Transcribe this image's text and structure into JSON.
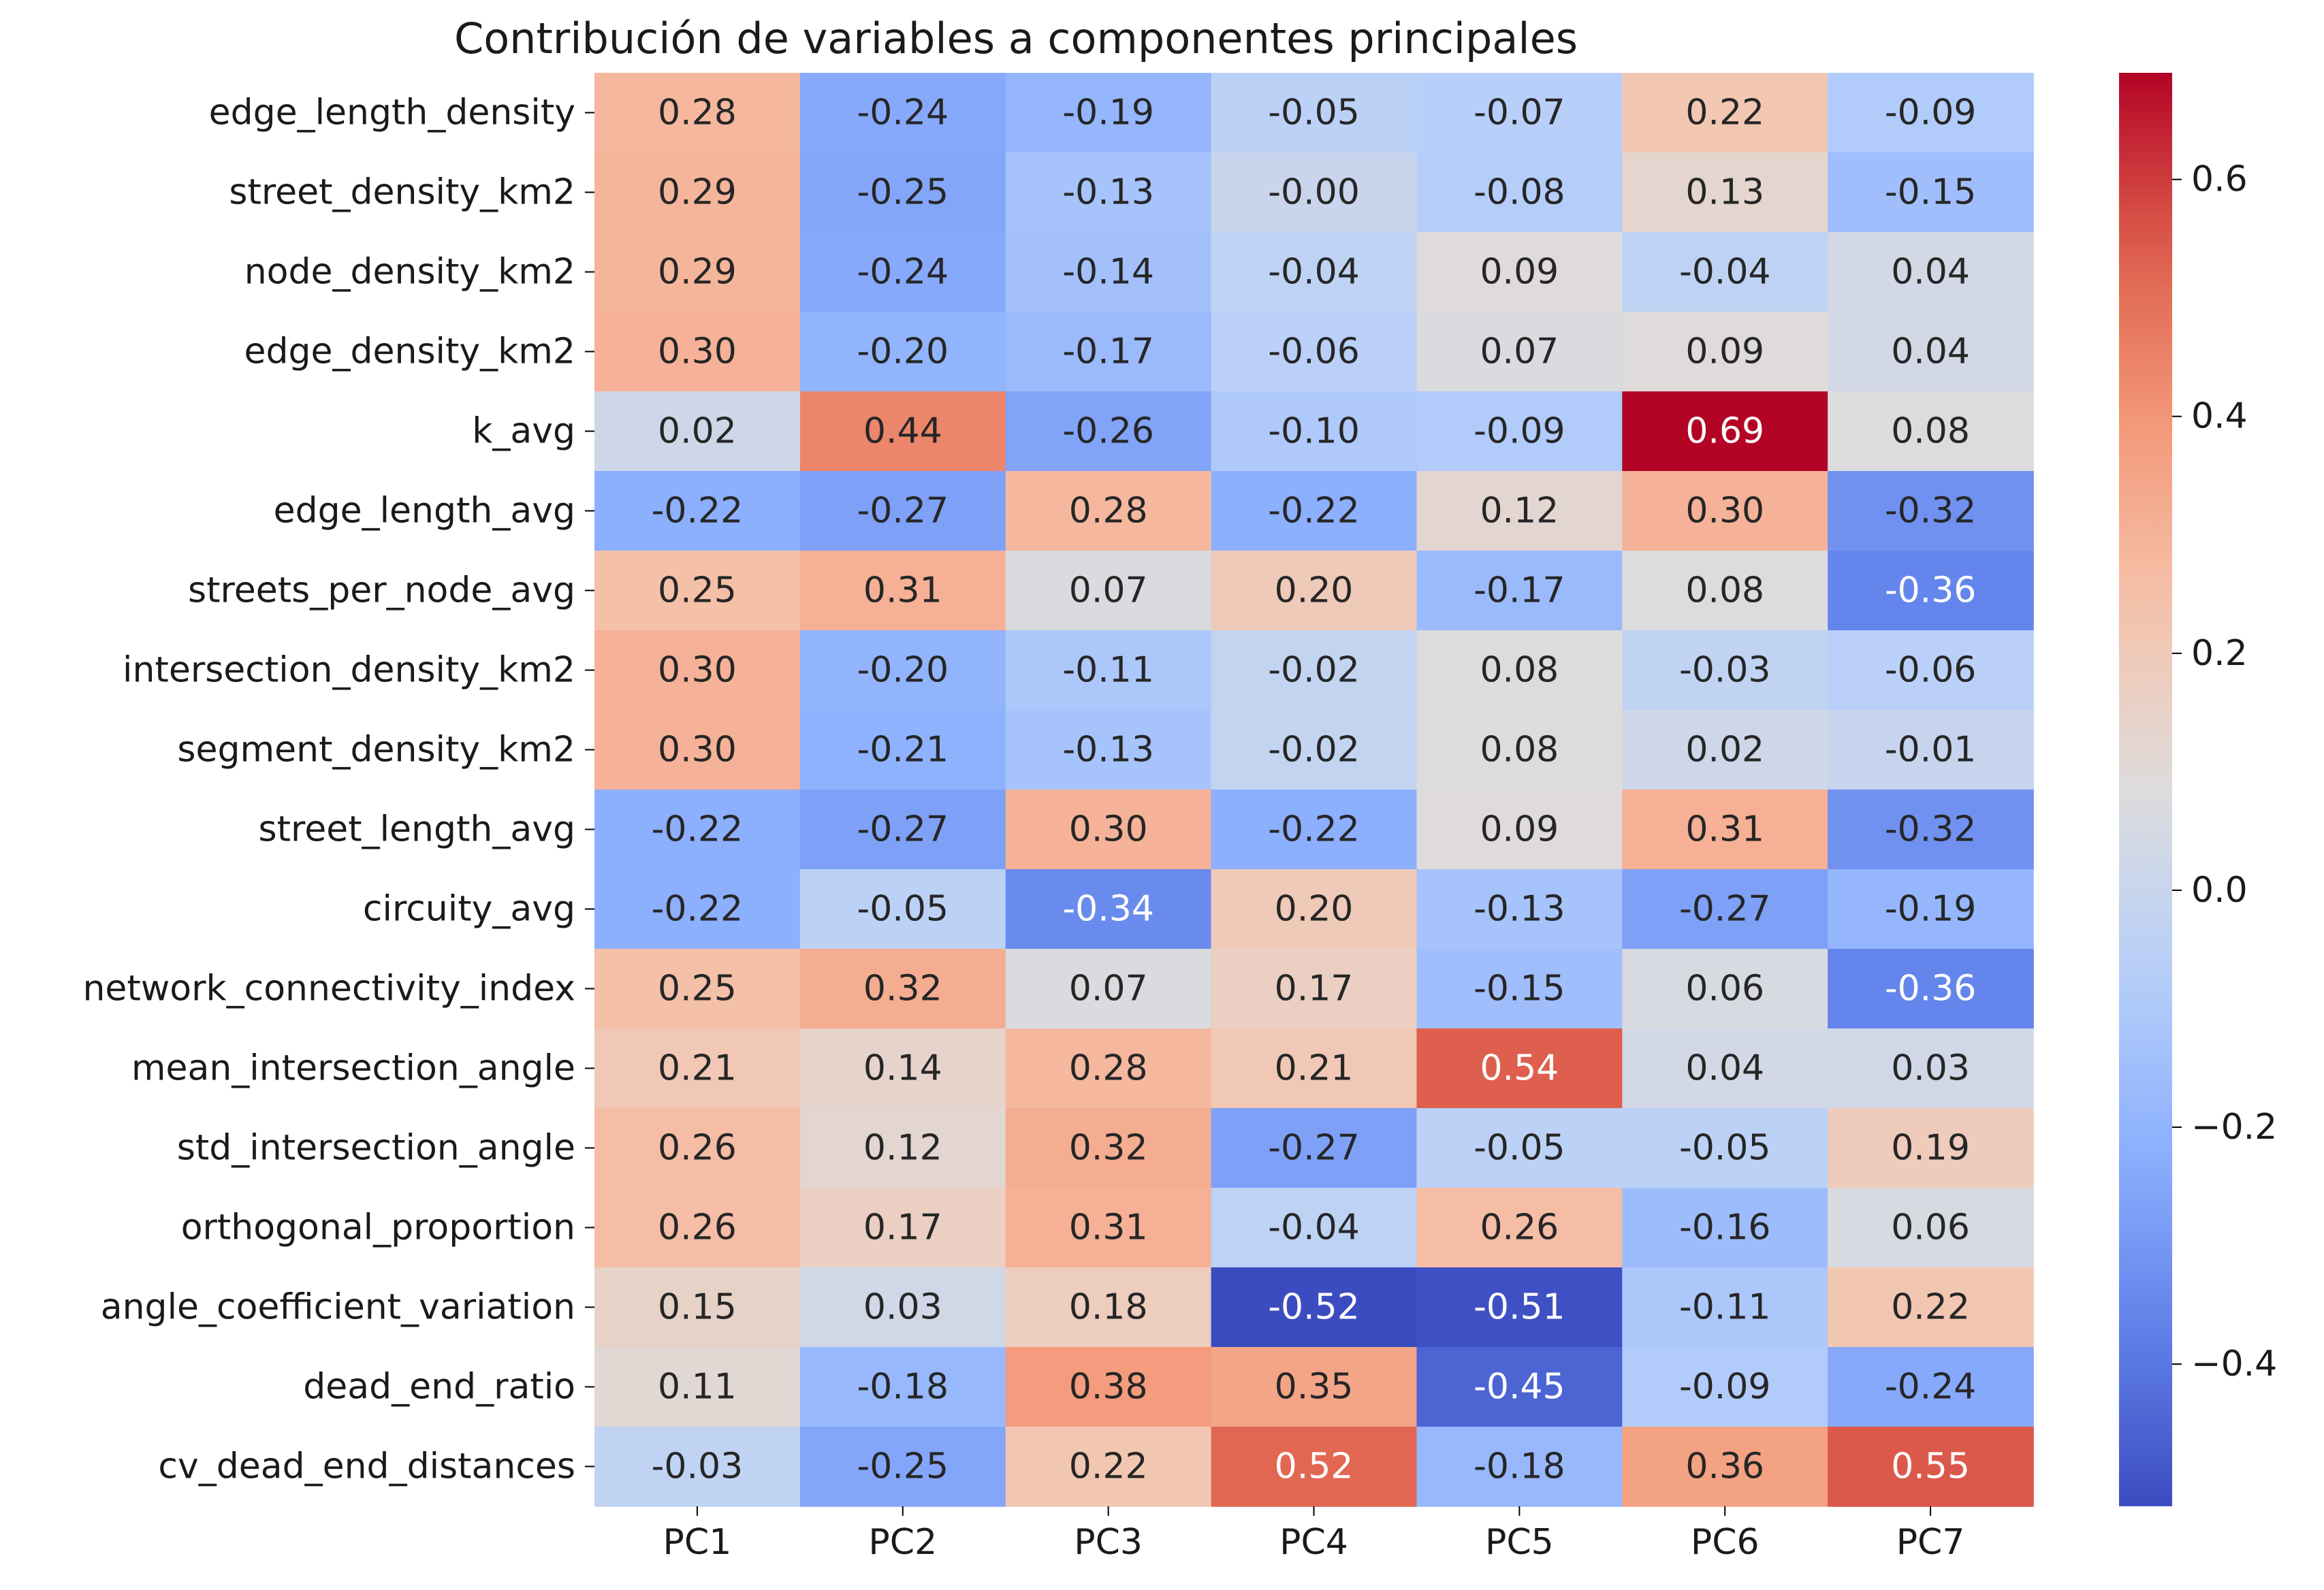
{
  "chart_data": {
    "type": "heatmap",
    "title": "Contribución de variables a componentes principales",
    "xlabel": "",
    "ylabel": "",
    "columns": [
      "PC1",
      "PC2",
      "PC3",
      "PC4",
      "PC5",
      "PC6",
      "PC7"
    ],
    "rows": [
      "edge_length_density",
      "street_density_km2",
      "node_density_km2",
      "edge_density_km2",
      "k_avg",
      "edge_length_avg",
      "streets_per_node_avg",
      "intersection_density_km2",
      "segment_density_km2",
      "street_length_avg",
      "circuity_avg",
      "network_connectivity_index",
      "mean_intersection_angle",
      "std_intersection_angle",
      "orthogonal_proportion",
      "angle_coefficient_variation",
      "dead_end_ratio",
      "cv_dead_end_distances"
    ],
    "values": [
      [
        0.28,
        -0.24,
        -0.19,
        -0.05,
        -0.07,
        0.22,
        -0.09
      ],
      [
        0.29,
        -0.25,
        -0.13,
        -0.0,
        -0.08,
        0.13,
        -0.15
      ],
      [
        0.29,
        -0.24,
        -0.14,
        -0.04,
        0.09,
        -0.04,
        0.04
      ],
      [
        0.3,
        -0.2,
        -0.17,
        -0.06,
        0.07,
        0.09,
        0.04
      ],
      [
        0.02,
        0.44,
        -0.26,
        -0.1,
        -0.09,
        0.69,
        0.08
      ],
      [
        -0.22,
        -0.27,
        0.28,
        -0.22,
        0.12,
        0.3,
        -0.32
      ],
      [
        0.25,
        0.31,
        0.07,
        0.2,
        -0.17,
        0.08,
        -0.36
      ],
      [
        0.3,
        -0.2,
        -0.11,
        -0.02,
        0.08,
        -0.03,
        -0.06
      ],
      [
        0.3,
        -0.21,
        -0.13,
        -0.02,
        0.08,
        0.02,
        -0.01
      ],
      [
        -0.22,
        -0.27,
        0.3,
        -0.22,
        0.09,
        0.31,
        -0.32
      ],
      [
        -0.22,
        -0.05,
        -0.34,
        0.2,
        -0.13,
        -0.27,
        -0.19
      ],
      [
        0.25,
        0.32,
        0.07,
        0.17,
        -0.15,
        0.06,
        -0.36
      ],
      [
        0.21,
        0.14,
        0.28,
        0.21,
        0.54,
        0.04,
        0.03
      ],
      [
        0.26,
        0.12,
        0.32,
        -0.27,
        -0.05,
        -0.05,
        0.19
      ],
      [
        0.26,
        0.17,
        0.31,
        -0.04,
        0.26,
        -0.16,
        0.06
      ],
      [
        0.15,
        0.03,
        0.18,
        -0.52,
        -0.51,
        -0.11,
        0.22
      ],
      [
        0.11,
        -0.18,
        0.38,
        0.35,
        -0.45,
        -0.09,
        -0.24
      ],
      [
        -0.03,
        -0.25,
        0.22,
        0.52,
        -0.18,
        0.36,
        0.55
      ]
    ],
    "colormap": "coolwarm",
    "vmin": -0.52,
    "vmax": 0.69,
    "colorbar_ticks": [
      -0.4,
      -0.2,
      0.0,
      0.2,
      0.4,
      0.6
    ],
    "colorbar_tick_labels": [
      "−0.4",
      "−0.2",
      "0.0",
      "0.2",
      "0.4",
      "0.6"
    ],
    "grid": false,
    "legend": "colorbar-right"
  }
}
